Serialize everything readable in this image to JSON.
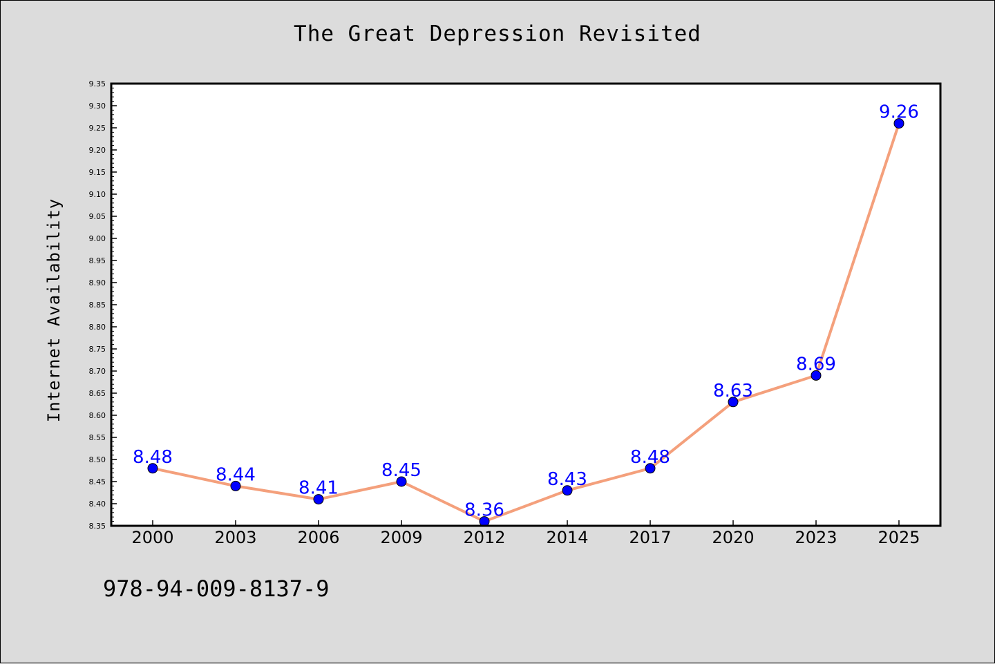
{
  "chart_data": {
    "type": "line",
    "title": "The Great Depression Revisited",
    "xlabel": "",
    "ylabel": "Internet Availability",
    "categories": [
      "2000",
      "2003",
      "2006",
      "2009",
      "2012",
      "2014",
      "2017",
      "2020",
      "2023",
      "2025"
    ],
    "series": [
      {
        "values": [
          8.48,
          8.44,
          8.41,
          8.45,
          8.36,
          8.43,
          8.48,
          8.63,
          8.69,
          9.26
        ]
      }
    ],
    "data_labels": [
      "8.48",
      "8.44",
      "8.41",
      "8.45",
      "8.36",
      "8.43",
      "8.48",
      "8.63",
      "8.69",
      "9.26"
    ],
    "ylim": [
      8.35,
      9.35
    ],
    "y_ticks": [
      "8.35",
      "8.40",
      "8.45",
      "8.50",
      "8.55",
      "8.60",
      "8.65",
      "8.70",
      "8.75",
      "8.80",
      "8.85",
      "8.90",
      "8.95",
      "9.00",
      "9.05",
      "9.10",
      "9.15",
      "9.20",
      "9.25",
      "9.30",
      "9.35"
    ],
    "grid": false,
    "legend": "none",
    "colors": {
      "line": "#f4a07c",
      "marker": "#0000ff",
      "label": "#0000ff",
      "plot_bg": "#ffffff",
      "figure_bg": "#dcdcdc"
    }
  },
  "footer": {
    "code": "978-94-009-8137-9"
  }
}
